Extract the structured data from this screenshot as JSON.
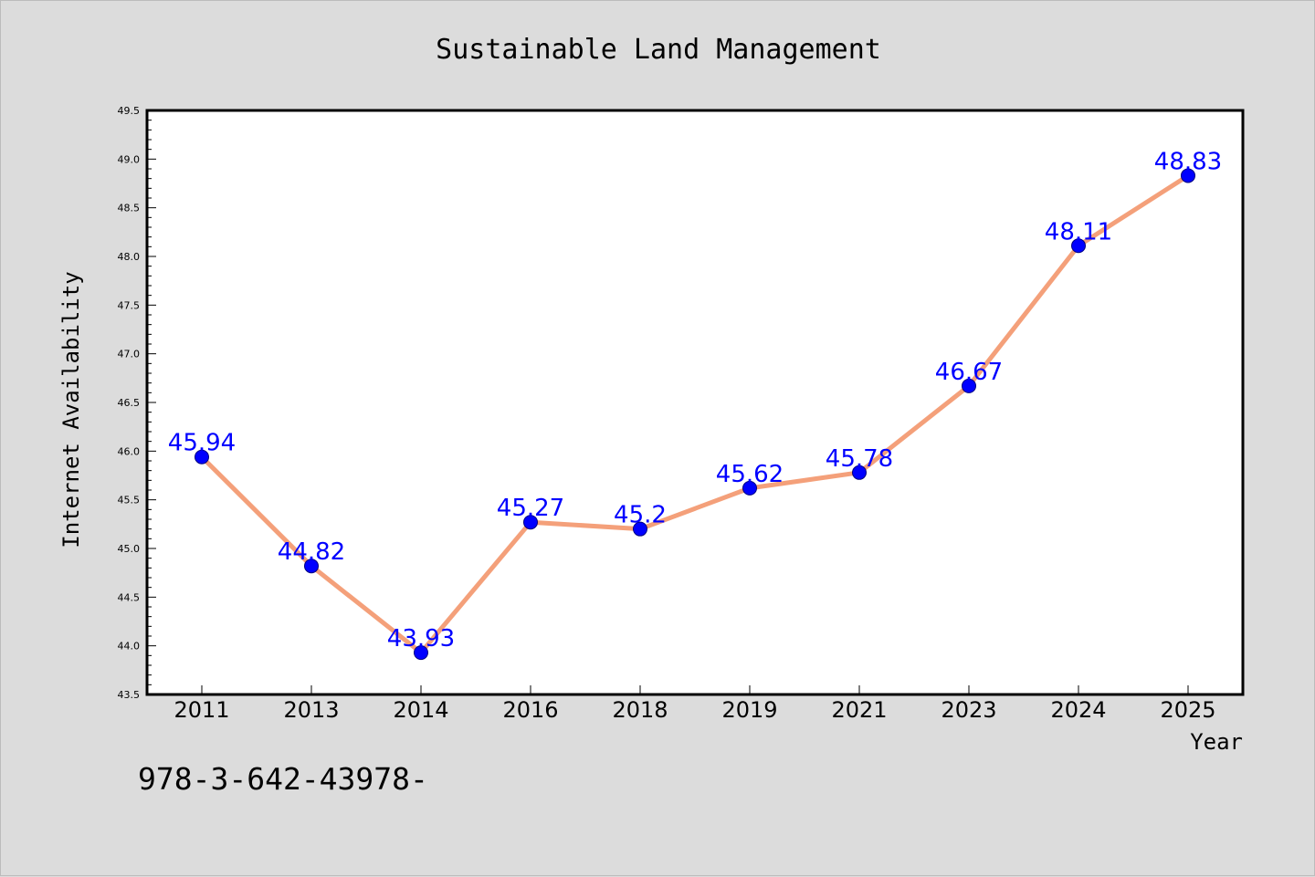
{
  "chart_data": {
    "type": "line",
    "title": "Sustainable Land Management",
    "xlabel": "Year",
    "ylabel": "Internet Availability",
    "categories": [
      "2011",
      "2013",
      "2014",
      "2016",
      "2018",
      "2019",
      "2021",
      "2023",
      "2024",
      "2025"
    ],
    "series": [
      {
        "values": [
          45.94,
          44.82,
          43.93,
          45.27,
          45.2,
          45.62,
          45.78,
          46.67,
          48.11,
          48.83
        ],
        "labels": [
          "45.94",
          "44.82",
          "43.93",
          "45.27",
          "45.2",
          "45.62",
          "45.78",
          "46.67",
          "48.11",
          "48.83"
        ],
        "line_color": "#f4a07a",
        "marker_color": "#0000ff"
      }
    ],
    "ylim": [
      43.5,
      49.5
    ],
    "yticks": [
      "43.5",
      "44.0",
      "44.5",
      "45.0",
      "45.5",
      "46.0",
      "46.5",
      "47.0",
      "47.5",
      "48.0",
      "48.5",
      "49.0",
      "49.5"
    ],
    "grid": false,
    "legend": "none",
    "background": "#dcdcdc",
    "plot_background": "#ffffff",
    "label_color": "#0000ff"
  },
  "footer": {
    "text": "978-3-642-43978-"
  }
}
